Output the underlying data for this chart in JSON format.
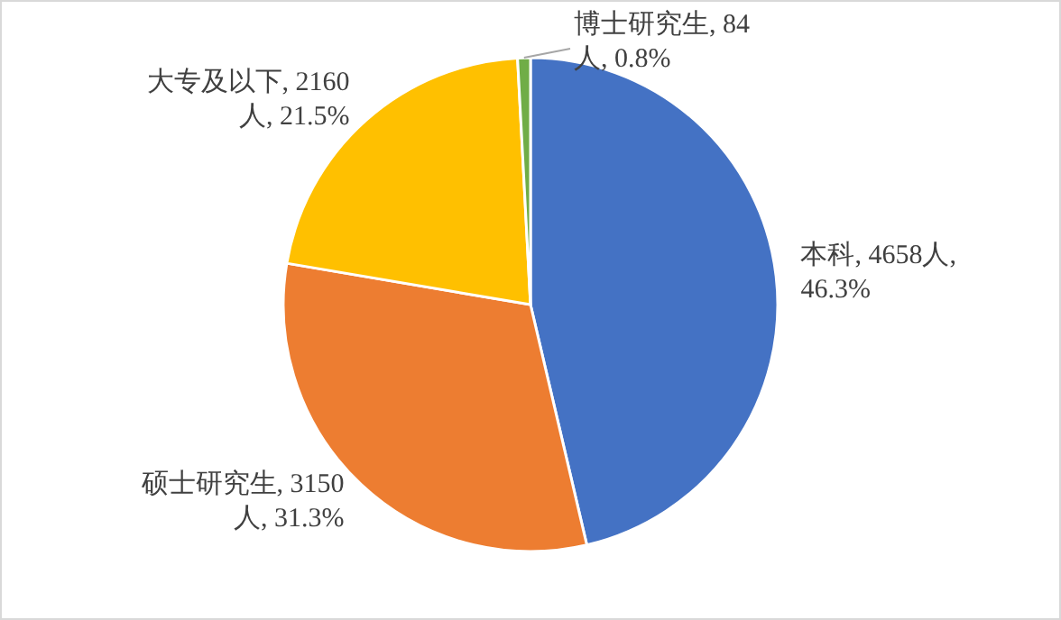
{
  "chart_data": {
    "type": "pie",
    "categories": [
      "本科",
      "硕士研究生",
      "大专及以下",
      "博士研究生"
    ],
    "values": [
      4658,
      3150,
      2160,
      84
    ],
    "value_labels": [
      "4658人, 46.3%",
      "3150人, 31.3%",
      "2160人, 21.5%",
      "84人, 0.8%"
    ],
    "colors": [
      "#4472c4",
      "#ed7d31",
      "#ffc000",
      "#70ad47"
    ]
  }
}
